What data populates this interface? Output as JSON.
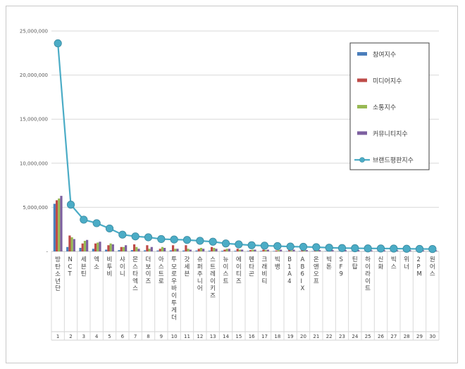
{
  "chart_data": {
    "type": "bar",
    "categories": [
      "방탄소년단",
      "NCT",
      "세븐틴",
      "엑소",
      "비투비",
      "샤이니",
      "몬스타엑스",
      "더보이즈",
      "아스트로",
      "투모로우바이투게더",
      "갓세븐",
      "슈퍼주니어",
      "스트레이키즈",
      "뉴이스트",
      "에이티즈",
      "펜타곤",
      "크래비티",
      "빅뱅",
      "B1A4",
      "AB6IX",
      "온앤오프",
      "빅톤",
      "SF9",
      "틴탑",
      "하이라이트",
      "신화",
      "빅스",
      "위너",
      "2PM",
      "원어스"
    ],
    "ranks": [
      "1",
      "2",
      "3",
      "4",
      "5",
      "6",
      "7",
      "8",
      "9",
      "10",
      "11",
      "12",
      "13",
      "14",
      "15",
      "16",
      "17",
      "18",
      "19",
      "20",
      "21",
      "22",
      "23",
      "24",
      "25",
      "26",
      "27",
      "28",
      "29",
      "30"
    ],
    "ylim": [
      0,
      25000000
    ],
    "yticks": [
      "-",
      "5,000,000",
      "10,000,000",
      "15,000,000",
      "20,000,000",
      "25,000,000"
    ],
    "ytick_values": [
      0,
      5000000,
      10000000,
      15000000,
      20000000,
      25000000
    ],
    "legend_position": "top-right",
    "grid": true,
    "series": [
      {
        "name": "참여지수",
        "kind": "bar",
        "color": "#4a7ebb",
        "values": [
          5400000,
          500000,
          400000,
          300000,
          200000,
          150000,
          150000,
          120000,
          100000,
          120000,
          100000,
          100000,
          90000,
          80000,
          70000,
          60000,
          60000,
          50000,
          40000,
          50000,
          40000,
          40000,
          30000,
          30000,
          30000,
          30000,
          30000,
          20000,
          20000,
          20000
        ]
      },
      {
        "name": "미디어지수",
        "kind": "bar",
        "color": "#be4b48",
        "values": [
          5800000,
          1800000,
          900000,
          900000,
          700000,
          500000,
          800000,
          700000,
          300000,
          700000,
          700000,
          300000,
          500000,
          200000,
          300000,
          150000,
          200000,
          100000,
          150000,
          150000,
          150000,
          100000,
          100000,
          80000,
          80000,
          80000,
          70000,
          60000,
          60000,
          60000
        ]
      },
      {
        "name": "소통지수",
        "kind": "bar",
        "color": "#98b954",
        "values": [
          6000000,
          1600000,
          1200000,
          1000000,
          900000,
          500000,
          500000,
          300000,
          500000,
          300000,
          300000,
          400000,
          400000,
          300000,
          200000,
          200000,
          150000,
          150000,
          100000,
          100000,
          100000,
          100000,
          80000,
          80000,
          80000,
          60000,
          60000,
          60000,
          60000,
          50000
        ]
      },
      {
        "name": "커뮤니티지수",
        "kind": "bar",
        "color": "#7d60a0",
        "values": [
          6300000,
          1400000,
          1300000,
          1100000,
          800000,
          700000,
          300000,
          500000,
          400000,
          300000,
          200000,
          300000,
          300000,
          300000,
          200000,
          200000,
          200000,
          200000,
          200000,
          150000,
          150000,
          150000,
          150000,
          150000,
          120000,
          120000,
          120000,
          120000,
          120000,
          120000
        ]
      },
      {
        "name": "브랜드평판지수",
        "kind": "line",
        "color": "#4bacc6",
        "values": [
          23600000,
          5300000,
          3600000,
          3200000,
          2600000,
          1900000,
          1700000,
          1600000,
          1400000,
          1350000,
          1300000,
          1200000,
          1100000,
          900000,
          800000,
          700000,
          650000,
          600000,
          550000,
          520000,
          480000,
          420000,
          380000,
          360000,
          340000,
          330000,
          320000,
          300000,
          280000,
          270000
        ]
      }
    ]
  }
}
